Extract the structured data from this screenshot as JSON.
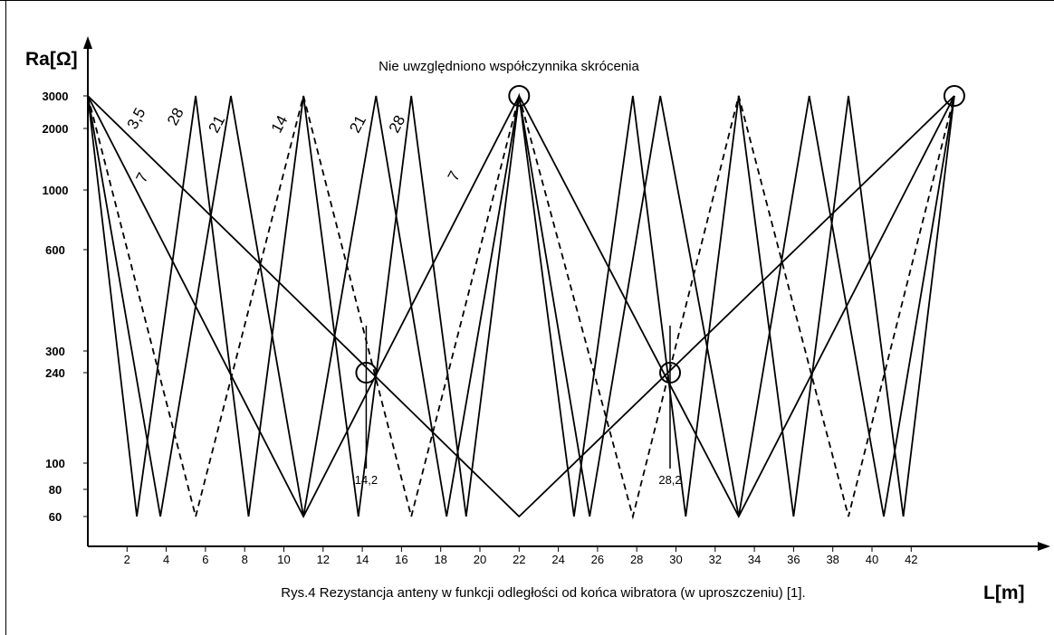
{
  "chart_data": {
    "type": "line",
    "title": "Nie uwzględniono współczynnika skrócenia",
    "caption": "Rys.4  Rezystancja anteny w funkcji odległości od końca wibratora (w uproszczeniu) [1].",
    "xlabel": "L[m]",
    "ylabel": "Ra[Ω]",
    "x_ticks": [
      2,
      4,
      6,
      8,
      10,
      12,
      14,
      16,
      18,
      20,
      22,
      24,
      26,
      28,
      30,
      32,
      34,
      36,
      38,
      40,
      42
    ],
    "y_ticks": [
      60,
      80,
      100,
      240,
      300,
      600,
      1000,
      2000,
      3000
    ],
    "xlim": [
      0,
      47.8
    ],
    "y_scale": "log",
    "ylim": [
      40,
      3600
    ],
    "grid": false,
    "series": [
      {
        "name": "3,5",
        "style": "solid",
        "x": [
          0,
          22,
          44.2
        ],
        "y": [
          3000,
          60,
          3000
        ]
      },
      {
        "name": "7",
        "style": "solid",
        "x": [
          0,
          11,
          22,
          33.2,
          44.2
        ],
        "y": [
          3000,
          60,
          3000,
          60,
          3000
        ]
      },
      {
        "name": "14",
        "style": "dashed",
        "x": [
          0,
          5.5,
          11,
          16.5,
          22,
          27.8,
          33.2,
          38.8,
          44.2
        ],
        "y": [
          3000,
          60,
          3000,
          60,
          3000,
          60,
          3000,
          60,
          3000
        ]
      },
      {
        "name": "21",
        "style": "solid",
        "x": [
          0,
          3.7,
          7.3,
          11,
          14.7,
          18.3,
          22,
          25.6,
          29.2,
          33.2,
          36.8,
          40.6,
          44.2
        ],
        "y": [
          3000,
          60,
          3000,
          60,
          3000,
          60,
          3000,
          60,
          3000,
          60,
          3000,
          60,
          3000
        ]
      },
      {
        "name": "28",
        "style": "solid",
        "x": [
          0,
          2.5,
          5.5,
          8.2,
          11,
          13.8,
          16.5,
          19.3,
          22,
          24.8,
          27.8,
          30.5,
          33.2,
          36,
          38.8,
          41.6,
          44.2
        ],
        "y": [
          3000,
          60,
          3000,
          60,
          3000,
          60,
          3000,
          60,
          3000,
          60,
          3000,
          60,
          3000,
          60,
          3000,
          60,
          3000
        ]
      }
    ],
    "series_labels": [
      {
        "text": "3,5",
        "x": 2.7,
        "y": 2200
      },
      {
        "text": "7",
        "x": 3.0,
        "y": 1120
      },
      {
        "text": "28",
        "x": 4.7,
        "y": 2250
      },
      {
        "text": "21",
        "x": 6.8,
        "y": 2050
      },
      {
        "text": "14",
        "x": 10.0,
        "y": 2050
      },
      {
        "text": "21",
        "x": 14.0,
        "y": 2050
      },
      {
        "text": "28",
        "x": 16.0,
        "y": 2050
      },
      {
        "text": "7",
        "x": 18.9,
        "y": 1140
      }
    ],
    "markers": [
      {
        "x": 14.2,
        "y": 240,
        "label": "14,2"
      },
      {
        "x": 29.7,
        "y": 240,
        "label": "28,2"
      }
    ],
    "circles": [
      {
        "x": 14.2,
        "y": 240
      },
      {
        "x": 29.7,
        "y": 240
      },
      {
        "x": 22,
        "y": 3000
      },
      {
        "x": 44.2,
        "y": 3000
      }
    ]
  }
}
